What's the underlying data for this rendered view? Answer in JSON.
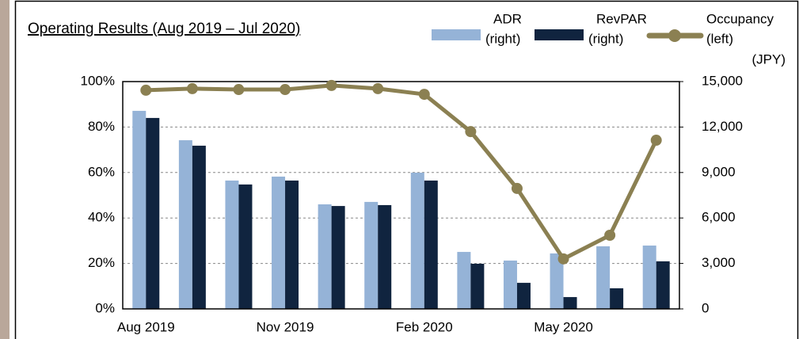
{
  "chart_data": {
    "type": "bar",
    "title": "Operating Results (Aug 2019 – Jul 2020)",
    "y2_unit": "(JPY)",
    "categories": [
      "Aug 2019",
      null,
      null,
      "Nov 2019",
      null,
      null,
      "Feb 2020",
      null,
      null,
      "May 2020",
      null,
      null
    ],
    "series": [
      {
        "name": "ADR",
        "legend_note": "(right)",
        "color": "#95b3d7",
        "axis": "y2",
        "type": "bar",
        "values": [
          13070,
          11130,
          8470,
          8730,
          6900,
          7060,
          8990,
          3760,
          3190,
          3660,
          4130,
          4180
        ]
      },
      {
        "name": "RevPAR",
        "legend_note": "(right)",
        "color": "#10243f",
        "axis": "y2",
        "type": "bar",
        "values": [
          12600,
          10770,
          8210,
          8470,
          6790,
          6850,
          8470,
          2980,
          1720,
          780,
          1360,
          3140
        ]
      },
      {
        "name": "Occupancy",
        "legend_note": "(left)",
        "color": "#8b8052",
        "axis": "y",
        "type": "line",
        "values": [
          96.2,
          96.9,
          96.5,
          96.5,
          98.3,
          96.9,
          94.4,
          78.0,
          53.0,
          22.0,
          32.4,
          74.2
        ]
      }
    ],
    "ylim": [
      0,
      100
    ],
    "yticks": [
      {
        "value": 0,
        "label": "0%"
      },
      {
        "value": 20,
        "label": "20%"
      },
      {
        "value": 40,
        "label": "40%"
      },
      {
        "value": 60,
        "label": "60%"
      },
      {
        "value": 80,
        "label": "80%"
      },
      {
        "value": 100,
        "label": "100%"
      }
    ],
    "y2lim": [
      0,
      15000
    ],
    "y2ticks": [
      0,
      {
        "value": 3000,
        "label": "3,000"
      },
      {
        "value": 6000,
        "label": "6,000"
      },
      {
        "value": 9000,
        "label": "9,000"
      },
      {
        "value": 12000,
        "label": "12,000"
      },
      {
        "value": 15000,
        "label": "15,000"
      }
    ],
    "grid": true
  }
}
